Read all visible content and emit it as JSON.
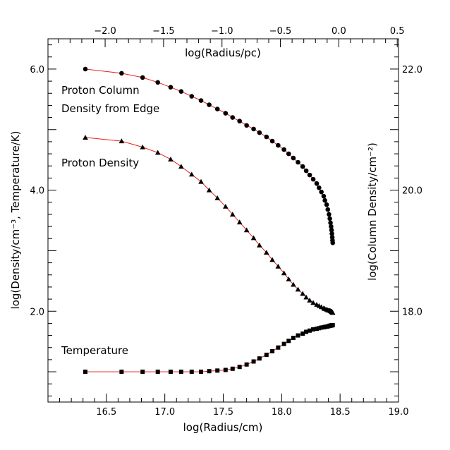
{
  "chart_data": {
    "type": "line",
    "xlabel_bottom": "log(Radius/cm)",
    "xlabel_top": "log(Radius/pc)",
    "ylabel_left": "log(Density/cm⁻³, Temperature/K)",
    "ylabel_right": "log(Column Density/cm⁻²)",
    "xlim": [
      16.0,
      19.0
    ],
    "ylim_left": [
      0.5,
      6.5
    ],
    "ylim_right": [
      16.5,
      22.5
    ],
    "x_ticks_bottom": [
      "16.5",
      "17.0",
      "17.5",
      "18.0",
      "18.5",
      "19.0"
    ],
    "x_ticks_top": [
      "−2.0",
      "−1.5",
      "−1.0",
      "−0.5",
      "0.0",
      "0.5"
    ],
    "y_ticks_left": [
      "2.0",
      "4.0",
      "6.0"
    ],
    "y_ticks_right": [
      "18.0",
      "20.0",
      "22.0"
    ],
    "grid": false,
    "line_color": "#e8201c",
    "marker_color": "#000000",
    "series": [
      {
        "name": "Proton Column Density from Edge",
        "label_lines": [
          "Proton Column",
          "Density from Edge"
        ],
        "marker": "circle",
        "axis": "right",
        "x": [
          16.32,
          16.63,
          16.81,
          16.94,
          17.05,
          17.14,
          17.23,
          17.31,
          17.38,
          17.45,
          17.52,
          17.58,
          17.64,
          17.7,
          17.76,
          17.81,
          17.87,
          17.92,
          17.97,
          18.02,
          18.06,
          18.1,
          18.14,
          18.18,
          18.21,
          18.24,
          18.27,
          18.3,
          18.32,
          18.34,
          18.36,
          18.37,
          18.385,
          18.395,
          18.405,
          18.412,
          18.418,
          18.423,
          18.427,
          18.43,
          18.433,
          18.435,
          18.437
        ],
        "y": [
          22.0,
          21.93,
          21.86,
          21.78,
          21.7,
          21.63,
          21.55,
          21.48,
          21.41,
          21.34,
          21.27,
          21.2,
          21.14,
          21.07,
          21.01,
          20.95,
          20.88,
          20.81,
          20.74,
          20.67,
          20.6,
          20.53,
          20.46,
          20.39,
          20.32,
          20.25,
          20.18,
          20.11,
          20.04,
          19.97,
          19.9,
          19.83,
          19.76,
          19.68,
          19.6,
          19.53,
          19.46,
          19.4,
          19.34,
          19.28,
          19.22,
          19.17,
          19.13
        ]
      },
      {
        "name": "Proton Density",
        "label_lines": [
          "Proton Density"
        ],
        "marker": "triangle",
        "axis": "left",
        "x": [
          16.32,
          16.63,
          16.81,
          16.94,
          17.05,
          17.14,
          17.23,
          17.31,
          17.38,
          17.45,
          17.52,
          17.58,
          17.64,
          17.7,
          17.76,
          17.81,
          17.87,
          17.92,
          17.97,
          18.02,
          18.06,
          18.1,
          18.14,
          18.18,
          18.21,
          18.24,
          18.27,
          18.3,
          18.32,
          18.34,
          18.36,
          18.37,
          18.385,
          18.395,
          18.405,
          18.412,
          18.418,
          18.423,
          18.427,
          18.43,
          18.433,
          18.435,
          18.437
        ],
        "y": [
          4.87,
          4.81,
          4.71,
          4.62,
          4.51,
          4.39,
          4.26,
          4.14,
          4.0,
          3.87,
          3.73,
          3.6,
          3.47,
          3.34,
          3.21,
          3.09,
          2.97,
          2.85,
          2.74,
          2.63,
          2.53,
          2.44,
          2.36,
          2.29,
          2.23,
          2.18,
          2.14,
          2.11,
          2.09,
          2.07,
          2.05,
          2.04,
          2.03,
          2.02,
          2.015,
          2.01,
          2.005,
          2.0,
          1.995,
          1.99,
          1.985,
          1.98,
          1.975
        ]
      },
      {
        "name": "Temperature",
        "label_lines": [
          "Temperature"
        ],
        "marker": "square",
        "axis": "left",
        "x": [
          16.32,
          16.63,
          16.81,
          16.94,
          17.05,
          17.14,
          17.23,
          17.31,
          17.38,
          17.45,
          17.52,
          17.58,
          17.64,
          17.7,
          17.76,
          17.81,
          17.87,
          17.92,
          17.97,
          18.02,
          18.06,
          18.1,
          18.14,
          18.18,
          18.21,
          18.24,
          18.27,
          18.3,
          18.32,
          18.34,
          18.36,
          18.37,
          18.385,
          18.395,
          18.405,
          18.412,
          18.418,
          18.423,
          18.427,
          18.43,
          18.433,
          18.435,
          18.437
        ],
        "y": [
          1.0,
          1.0,
          1.0,
          1.0,
          1.0,
          1.0,
          1.0,
          1.0,
          1.01,
          1.02,
          1.03,
          1.05,
          1.08,
          1.12,
          1.17,
          1.22,
          1.28,
          1.34,
          1.4,
          1.46,
          1.51,
          1.56,
          1.6,
          1.63,
          1.66,
          1.68,
          1.7,
          1.71,
          1.72,
          1.73,
          1.735,
          1.74,
          1.745,
          1.75,
          1.755,
          1.76,
          1.762,
          1.764,
          1.766,
          1.768,
          1.769,
          1.77,
          1.77
        ]
      }
    ]
  }
}
